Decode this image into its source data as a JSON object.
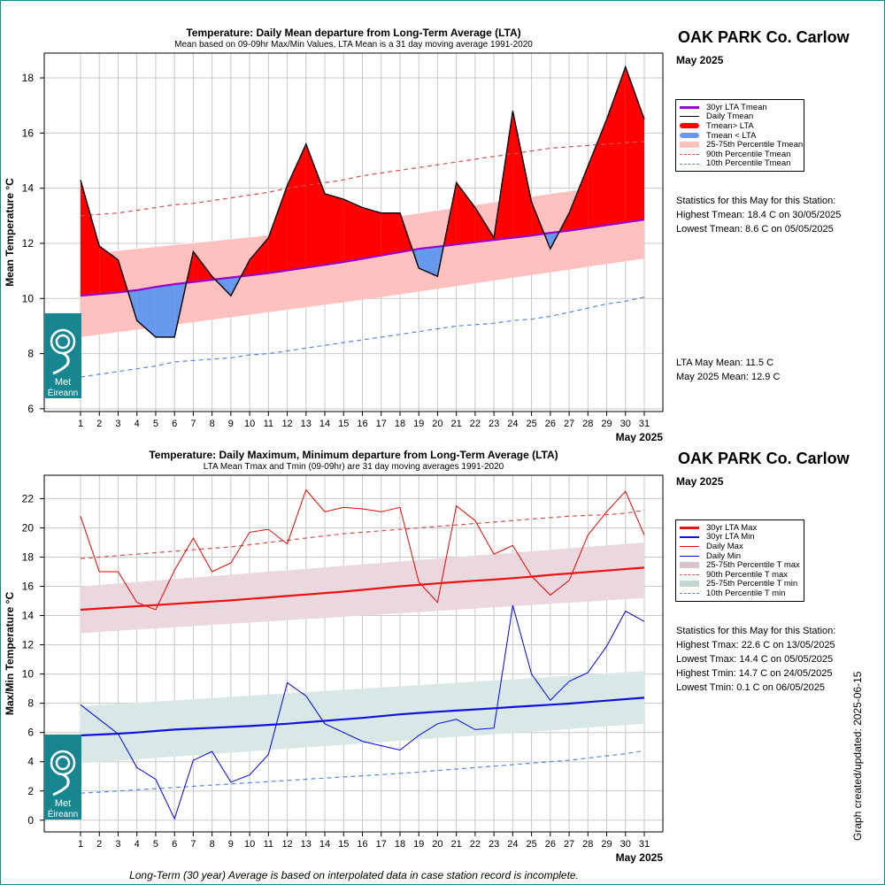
{
  "footer_note": "Long-Term (30 year) Average is based on interpolated data in case station record is incomplete.",
  "updated_label": "Graph created/updated:  2025-06-15",
  "logo": {
    "line1": "Met",
    "line2": "Éireann"
  },
  "colors": {
    "lta_purple": "#9900cc",
    "red": "#ff0000",
    "blue": "#6699ee",
    "pink": "#ffc0c0",
    "p90": "#d45050",
    "p10": "#5588dd",
    "max_band": "#ead8de",
    "min_band": "#d8e8e6",
    "lta_max": "#ee1111",
    "lta_min": "#1111dd",
    "frame": "#0d8a8a"
  },
  "chart_data": [
    {
      "type": "area",
      "title": "Temperature: Daily Mean departure from Long-Term Average (LTA)",
      "subtitle": "Mean based on 09-09hr Max/Min Values, LTA Mean is a 31 day moving average 1991-2020",
      "ylabel": "Mean Temperature °C",
      "xlabel": "May 2025",
      "ylim": [
        5.9,
        18.9
      ],
      "yticks": [
        6,
        8,
        10,
        12,
        14,
        16,
        18
      ],
      "grid": true,
      "x": [
        1,
        2,
        3,
        4,
        5,
        6,
        7,
        8,
        9,
        10,
        11,
        12,
        13,
        14,
        15,
        16,
        17,
        18,
        19,
        20,
        21,
        22,
        23,
        24,
        25,
        26,
        27,
        28,
        29,
        30,
        31
      ],
      "series": [
        {
          "name": "Daily Tmean",
          "values": [
            14.3,
            11.9,
            11.4,
            9.2,
            8.6,
            8.6,
            11.7,
            10.8,
            10.1,
            11.4,
            12.2,
            14.1,
            15.6,
            13.8,
            13.6,
            13.3,
            13.1,
            13.1,
            11.1,
            10.8,
            14.2,
            13.3,
            12.2,
            16.8,
            13.5,
            11.8,
            13.1,
            14.8,
            16.5,
            18.4,
            16.5
          ]
        },
        {
          "name": "30yr LTA Tmean",
          "values": [
            10.1,
            10.16,
            10.22,
            10.3,
            10.42,
            10.52,
            10.6,
            10.68,
            10.76,
            10.84,
            10.92,
            11.02,
            11.12,
            11.22,
            11.32,
            11.44,
            11.56,
            11.68,
            11.8,
            11.88,
            11.96,
            12.04,
            12.12,
            12.2,
            12.28,
            12.38,
            12.46,
            12.56,
            12.66,
            12.76,
            12.86
          ]
        },
        {
          "name": "25th Percentile Tmean",
          "values": [
            8.6,
            8.69,
            8.78,
            8.87,
            8.96,
            9.05,
            9.14,
            9.23,
            9.32,
            9.41,
            9.5,
            9.59,
            9.68,
            9.77,
            9.86,
            9.95,
            10.05,
            10.15,
            10.25,
            10.35,
            10.45,
            10.55,
            10.65,
            10.75,
            10.85,
            10.95,
            11.05,
            11.15,
            11.25,
            11.35,
            11.45
          ]
        },
        {
          "name": "75th Percentile Tmean",
          "values": [
            11.6,
            11.67,
            11.74,
            11.81,
            11.88,
            11.95,
            12.02,
            12.09,
            12.16,
            12.23,
            12.3,
            12.4,
            12.5,
            12.6,
            12.7,
            12.8,
            12.9,
            13.0,
            13.1,
            13.2,
            13.3,
            13.4,
            13.5,
            13.6,
            13.7,
            13.8,
            13.9,
            14.0,
            14.1,
            14.2,
            14.3
          ]
        },
        {
          "name": "90th Percentile Tmean",
          "values": [
            13.0,
            13.05,
            13.1,
            13.2,
            13.3,
            13.4,
            13.45,
            13.55,
            13.65,
            13.75,
            13.85,
            14.0,
            14.1,
            14.2,
            14.3,
            14.45,
            14.55,
            14.65,
            14.75,
            14.85,
            14.95,
            15.05,
            15.15,
            15.25,
            15.35,
            15.45,
            15.5,
            15.55,
            15.6,
            15.65,
            15.7
          ]
        },
        {
          "name": "10th Percentile Tmean",
          "values": [
            7.15,
            7.25,
            7.35,
            7.45,
            7.55,
            7.7,
            7.75,
            7.8,
            7.85,
            7.95,
            8.0,
            8.1,
            8.2,
            8.3,
            8.4,
            8.5,
            8.6,
            8.7,
            8.8,
            8.9,
            9.0,
            9.05,
            9.1,
            9.2,
            9.25,
            9.35,
            9.5,
            9.65,
            9.8,
            9.9,
            10.05
          ]
        }
      ],
      "legend": {
        "placement": "right",
        "entries": [
          "30yr LTA Tmean",
          "Daily Tmean",
          "Tmean> LTA",
          "Tmean < LTA",
          "25-75th Percentile Tmean",
          "90th Percentile Tmean",
          "10th Percentile Tmean"
        ]
      },
      "panel": {
        "station": "OAK PARK Co. Carlow",
        "month": "May 2025",
        "stats_header": "Statistics for this May for this Station:",
        "stats": [
          "Highest Tmean: 18.4 C on 30/05/2025",
          "Lowest Tmean: 8.6 C on 05/05/2025"
        ],
        "means": [
          "LTA May Mean: 11.5 C",
          "May 2025 Mean: 12.9 C"
        ]
      }
    },
    {
      "type": "line",
      "title": "Temperature: Daily Maximum, Minimum departure from Long-Term Average (LTA)",
      "subtitle": "LTA Mean Tmax and Tmin (09-09hr) are 31 day moving averages 1991-2020",
      "ylabel": "Max/Min Temperature °C",
      "xlabel": "May 2025",
      "ylim": [
        -0.8,
        23.6
      ],
      "yticks": [
        0,
        2,
        4,
        6,
        8,
        10,
        12,
        14,
        16,
        18,
        20,
        22
      ],
      "grid": true,
      "x": [
        1,
        2,
        3,
        4,
        5,
        6,
        7,
        8,
        9,
        10,
        11,
        12,
        13,
        14,
        15,
        16,
        17,
        18,
        19,
        20,
        21,
        22,
        23,
        24,
        25,
        26,
        27,
        28,
        29,
        30,
        31
      ],
      "series": [
        {
          "name": "Daily Max",
          "values": [
            20.8,
            17.0,
            17.0,
            14.9,
            14.4,
            17.1,
            19.3,
            17.0,
            17.6,
            19.7,
            19.9,
            18.9,
            22.6,
            21.1,
            21.4,
            21.3,
            21.1,
            21.4,
            16.3,
            14.9,
            21.5,
            20.5,
            18.2,
            18.8,
            16.7,
            15.4,
            16.4,
            19.5,
            21.1,
            22.5,
            19.5
          ]
        },
        {
          "name": "Daily Min",
          "values": [
            7.9,
            6.9,
            5.9,
            3.6,
            2.8,
            0.1,
            4.1,
            4.7,
            2.6,
            3.1,
            4.5,
            9.4,
            8.5,
            6.6,
            6.0,
            5.4,
            5.1,
            4.8,
            5.8,
            6.6,
            6.9,
            6.2,
            6.3,
            14.7,
            10.0,
            8.2,
            9.5,
            10.1,
            11.9,
            14.3,
            13.6
          ]
        },
        {
          "name": "30yr LTA Max",
          "values": [
            14.4,
            14.48,
            14.56,
            14.64,
            14.72,
            14.8,
            14.88,
            14.96,
            15.04,
            15.14,
            15.24,
            15.34,
            15.44,
            15.54,
            15.64,
            15.76,
            15.88,
            16.0,
            16.1,
            16.2,
            16.3,
            16.38,
            16.46,
            16.56,
            16.66,
            16.78,
            16.88,
            16.98,
            17.08,
            17.18,
            17.28
          ]
        },
        {
          "name": "30yr LTA Min",
          "values": [
            5.8,
            5.86,
            5.92,
            6.0,
            6.1,
            6.2,
            6.26,
            6.32,
            6.38,
            6.44,
            6.52,
            6.6,
            6.7,
            6.8,
            6.9,
            7.0,
            7.12,
            7.24,
            7.34,
            7.42,
            7.5,
            7.58,
            7.66,
            7.74,
            7.82,
            7.9,
            7.98,
            8.08,
            8.18,
            8.28,
            8.38
          ]
        },
        {
          "name": "25th Percentile T max",
          "values": [
            12.8,
            12.88,
            12.96,
            13.04,
            13.12,
            13.2,
            13.28,
            13.36,
            13.44,
            13.52,
            13.6,
            13.68,
            13.76,
            13.84,
            13.92,
            14.0,
            14.08,
            14.16,
            14.24,
            14.32,
            14.4,
            14.48,
            14.56,
            14.64,
            14.72,
            14.8,
            14.88,
            14.96,
            15.04,
            15.12,
            15.2
          ]
        },
        {
          "name": "75th Percentile T max",
          "values": [
            16.0,
            16.1,
            16.2,
            16.3,
            16.4,
            16.5,
            16.6,
            16.7,
            16.8,
            16.9,
            17.0,
            17.1,
            17.2,
            17.3,
            17.4,
            17.5,
            17.6,
            17.7,
            17.8,
            17.9,
            18.0,
            18.1,
            18.2,
            18.3,
            18.4,
            18.5,
            18.6,
            18.7,
            18.8,
            18.9,
            19.0
          ]
        },
        {
          "name": "25th Percentile T min",
          "values": [
            3.9,
            3.99,
            4.08,
            4.17,
            4.26,
            4.35,
            4.44,
            4.53,
            4.62,
            4.71,
            4.8,
            4.89,
            4.98,
            5.07,
            5.16,
            5.25,
            5.34,
            5.43,
            5.52,
            5.61,
            5.7,
            5.79,
            5.88,
            5.97,
            6.06,
            6.15,
            6.24,
            6.33,
            6.42,
            6.51,
            6.6
          ]
        },
        {
          "name": "75th Percentile T min",
          "values": [
            7.8,
            7.88,
            7.96,
            8.04,
            8.12,
            8.2,
            8.28,
            8.36,
            8.44,
            8.52,
            8.6,
            8.68,
            8.76,
            8.84,
            8.92,
            9.0,
            9.08,
            9.16,
            9.24,
            9.32,
            9.4,
            9.48,
            9.56,
            9.64,
            9.72,
            9.8,
            9.88,
            9.96,
            10.04,
            10.12,
            10.2
          ]
        },
        {
          "name": "90th Percentile T max",
          "values": [
            17.9,
            18.0,
            18.1,
            18.2,
            18.3,
            18.4,
            18.5,
            18.6,
            18.7,
            18.85,
            19.0,
            19.15,
            19.3,
            19.45,
            19.6,
            19.7,
            19.8,
            19.9,
            20.0,
            20.1,
            20.2,
            20.3,
            20.4,
            20.5,
            20.6,
            20.7,
            20.8,
            20.85,
            20.9,
            21.0,
            21.2
          ]
        },
        {
          "name": "10th Percentile T min",
          "values": [
            1.85,
            1.92,
            2.0,
            2.08,
            2.16,
            2.24,
            2.32,
            2.4,
            2.48,
            2.56,
            2.64,
            2.72,
            2.8,
            2.88,
            2.96,
            3.04,
            3.12,
            3.2,
            3.3,
            3.4,
            3.5,
            3.6,
            3.7,
            3.8,
            3.9,
            4.0,
            4.1,
            4.25,
            4.4,
            4.55,
            4.75
          ]
        }
      ],
      "legend": {
        "placement": "right",
        "entries": [
          "30yr LTA Max",
          "30yr LTA Min",
          "Daily Max",
          "Daily Min",
          "25-75th Percentile T max",
          "90th Percentile T max",
          "25-75th Percentile T min",
          "10th Percentile T min"
        ]
      },
      "panel": {
        "station": "OAK PARK Co. Carlow",
        "month": "May 2025",
        "stats_header": "Statistics for this May for this Station:",
        "stats": [
          "Highest Tmax: 22.6 C on 13/05/2025",
          "Lowest Tmax: 14.4 C on 05/05/2025",
          "Highest Tmin: 14.7 C on 24/05/2025",
          "Lowest Tmin: 0.1 C on 06/05/2025"
        ]
      }
    }
  ]
}
